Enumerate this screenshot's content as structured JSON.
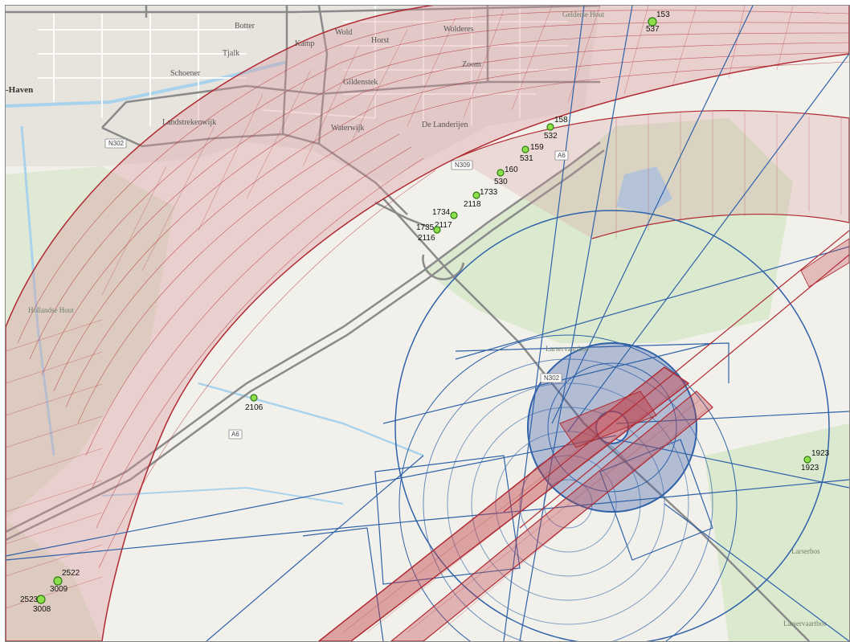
{
  "map": {
    "place_labels": [
      {
        "text": "Botter",
        "cls": "place"
      },
      {
        "text": "Wold",
        "cls": "place"
      },
      {
        "text": "Horst",
        "cls": "place"
      },
      {
        "text": "Kamp",
        "cls": "place"
      },
      {
        "text": "Tjalk",
        "cls": "place"
      },
      {
        "text": "Schoener",
        "cls": "place"
      },
      {
        "text": "Zoom",
        "cls": "place"
      },
      {
        "text": "Gildenstek",
        "cls": "place"
      },
      {
        "text": "Landstrekenwijk",
        "cls": "place"
      },
      {
        "text": "Waterwijk",
        "cls": "place"
      },
      {
        "text": "De Landerijen",
        "cls": "place"
      },
      {
        "text": "-Haven",
        "cls": "big"
      },
      {
        "text": "Wolderes",
        "cls": "place"
      },
      {
        "text": "Gelderse Hout",
        "cls": "park"
      },
      {
        "text": "Hollandse Hout",
        "cls": "park"
      },
      {
        "text": "Larservaartbos",
        "cls": "park"
      },
      {
        "text": "Larserbos",
        "cls": "park"
      },
      {
        "text": "Larservaartbos",
        "cls": "park"
      }
    ],
    "road_labels": [
      "N302",
      "N309",
      "A6",
      "A6",
      "N302"
    ],
    "points": [
      {
        "top": "153",
        "bottom": "537"
      },
      {
        "top": "158",
        "bottom": "532"
      },
      {
        "top": "159",
        "bottom": "531"
      },
      {
        "top": "160",
        "bottom": "530"
      },
      {
        "top": "1733",
        "bottom": "2118"
      },
      {
        "top": "1734",
        "bottom": "2117"
      },
      {
        "top": "1735",
        "bottom": "2116"
      },
      {
        "top": "",
        "bottom": "2106"
      },
      {
        "top": "1923",
        "bottom": "1923"
      },
      {
        "top": "2522",
        "bottom": "3009"
      },
      {
        "top": "2523",
        "bottom": "3008"
      }
    ],
    "colors": {
      "land": "#f2f0ea",
      "urban": "#e7e4de",
      "green": "#dbe9cf",
      "water": "#a9d3ec",
      "road_major": "#8a8a8a",
      "road_minor": "#ffffff",
      "zone_red_fill": "#d9959a",
      "zone_red_line": "#b02a32",
      "zone_blue_line": "#2f62a8",
      "zone_blue_fill": "#3c5ca8",
      "point_fill": "#8ee04a"
    }
  }
}
